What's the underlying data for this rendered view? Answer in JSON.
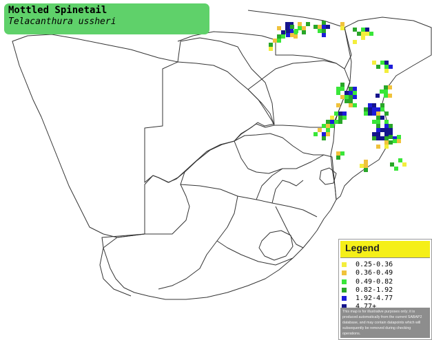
{
  "title": {
    "common_name": "Mottled Spinetail",
    "scientific_name": "Telacanthura ussheri",
    "box_color": "#5fd16a"
  },
  "legend": {
    "title": "Legend",
    "header_color": "#f5ef18",
    "items": [
      {
        "label": "0.25-0.36",
        "color": "#f3ee3c"
      },
      {
        "label": "0.36-0.49",
        "color": "#f0c23c"
      },
      {
        "label": "0.49-0.82",
        "color": "#39e639"
      },
      {
        "label": "0.82-1.92",
        "color": "#29a629"
      },
      {
        "label": "1.92-4.77",
        "color": "#1c1cd9"
      },
      {
        "label": "4.77+",
        "color": "#14148c"
      }
    ],
    "disclaimer": "This map is for illustrative purposes only; it is produced automatically from the current SABAP2 database, and may contain datapoints which will subsequently be removed during checking operations."
  },
  "map": {
    "border_color": "#333333",
    "border_width_note": "country and province outlines",
    "occurrence_cells": [
      {
        "c": 0,
        "r": 0,
        "lvl": 5
      },
      {
        "c": 1,
        "r": 0,
        "lvl": 4
      },
      {
        "c": 2,
        "r": 0,
        "lvl": 4
      },
      {
        "c": 3,
        "r": 0,
        "lvl": 2
      },
      {
        "c": 0,
        "r": 1,
        "lvl": 4
      },
      {
        "c": 1,
        "r": 1,
        "lvl": 2
      },
      {
        "c": 2,
        "r": 1,
        "lvl": 3
      }
    ]
  }
}
